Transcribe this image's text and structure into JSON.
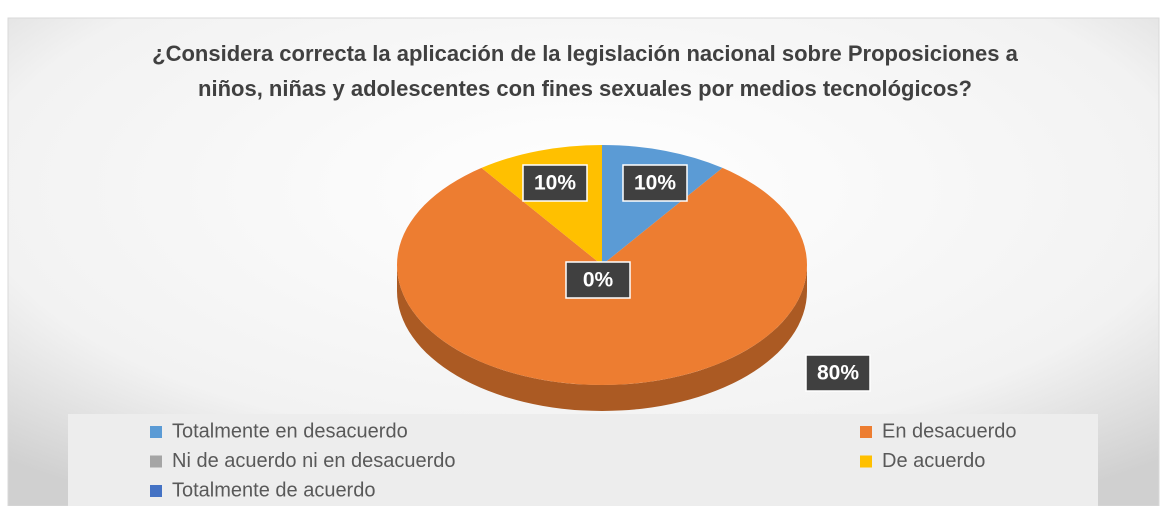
{
  "chart_data": {
    "type": "pie3d",
    "title": "¿Considera correcta la aplicación de la legislación nacional sobre Proposiciones a niños, niñas y adolescentes con fines sexuales por medios tecnológicos?",
    "categories": [
      "Totalmente en desacuerdo",
      "En desacuerdo",
      "Ni de acuerdo ni en desacuerdo",
      "De acuerdo",
      "Totalmente de acuerdo"
    ],
    "values": [
      10,
      80,
      0,
      10,
      0
    ],
    "value_labels": [
      "10%",
      "80%",
      "0%",
      "10%",
      null
    ],
    "colors": [
      "#5b9bd5",
      "#ed7d31",
      "#a5a5a5",
      "#ffc000",
      "#4472c4"
    ],
    "legend": "bottom"
  }
}
